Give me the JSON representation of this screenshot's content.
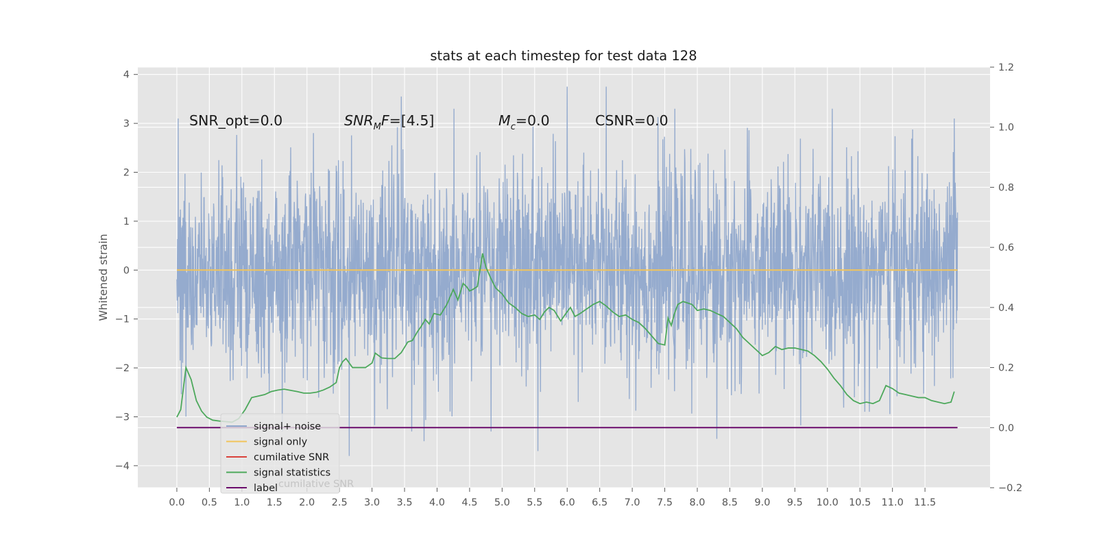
{
  "chart_data": {
    "type": "line",
    "title": "stats at each timestep for test data 128",
    "ylabel": "Whitened strain",
    "xlabel": "",
    "xlim": [
      -0.6,
      12.5
    ],
    "ylim_left": [
      -4.45,
      4.15
    ],
    "ylim_right": [
      -0.2,
      1.2
    ],
    "grid": true,
    "legend_placement": "lower-left",
    "x_ticks": [
      "0.0",
      "0.5",
      "1.0",
      "1.5",
      "2.0",
      "2.5",
      "3.0",
      "3.5",
      "4.0",
      "4.5",
      "5.0",
      "5.5",
      "6.0",
      "6.5",
      "7.0",
      "7.5",
      "8.0",
      "8.5",
      "9.0",
      "9.5",
      "10.0",
      "10.5",
      "11.0",
      "11.5"
    ],
    "y_ticks_left": [
      "−4",
      "−3",
      "−2",
      "−1",
      "0",
      "1",
      "2",
      "3",
      "4"
    ],
    "y_ticks_right": [
      "−0.2",
      "0.0",
      "0.2",
      "0.4",
      "0.6",
      "0.8",
      "1.0",
      "1.2"
    ],
    "annotations": [
      {
        "id": "snr-opt",
        "text": "SNR_opt=0.0"
      },
      {
        "id": "snr-mf",
        "text": "SNR_MF=[4.5]"
      },
      {
        "id": "mc",
        "text": "M_c=0.0"
      },
      {
        "id": "csnr",
        "text": "CSNR=0.0"
      }
    ],
    "legend": [
      {
        "label": "signal+ noise",
        "color": "#8EA6CC"
      },
      {
        "label": "signal only",
        "color": "#F2C45A"
      },
      {
        "label": "cumilative SNR",
        "color": "#D9403A"
      },
      {
        "label": "signal statistics",
        "color": "#4CA85B"
      },
      {
        "label": "label",
        "color": "#6A0A6B"
      }
    ],
    "legend_overlap_text": "cumilative SNR",
    "series": [
      {
        "name": "signal+ noise",
        "axis": "left",
        "color": "#8EA6CC",
        "kind": "noise",
        "x_range": [
          0.0,
          12.0
        ],
        "typical_band": [
          -2.0,
          2.5
        ],
        "extremes": [
          [
            5.55,
            -3.7
          ],
          [
            2.65,
            -3.8
          ],
          [
            3.8,
            -3.5
          ],
          [
            8.3,
            -3.45
          ],
          [
            6.0,
            3.75
          ],
          [
            6.6,
            3.75
          ],
          [
            3.45,
            3.55
          ],
          [
            11.95,
            3.1
          ],
          [
            0.02,
            3.1
          ]
        ]
      },
      {
        "name": "signal only",
        "axis": "left",
        "color": "#F2C45A",
        "x": [
          0.0,
          12.0
        ],
        "y": [
          0.0,
          0.0
        ]
      },
      {
        "name": "signal statistics",
        "axis": "right",
        "color": "#4CA85B",
        "x": [
          0.0,
          0.06,
          0.14,
          0.22,
          0.3,
          0.38,
          0.46,
          0.55,
          0.65,
          0.75,
          0.85,
          0.95,
          1.05,
          1.15,
          1.25,
          1.35,
          1.45,
          1.55,
          1.65,
          1.75,
          1.85,
          1.95,
          2.05,
          2.15,
          2.25,
          2.35,
          2.45,
          2.5,
          2.55,
          2.6,
          2.7,
          2.8,
          2.9,
          3.0,
          3.05,
          3.15,
          3.25,
          3.35,
          3.45,
          3.55,
          3.62,
          3.7,
          3.75,
          3.82,
          3.88,
          3.95,
          4.05,
          4.15,
          4.25,
          4.32,
          4.4,
          4.45,
          4.5,
          4.55,
          4.62,
          4.7,
          4.75,
          4.82,
          4.9,
          5.0,
          5.1,
          5.2,
          5.3,
          5.4,
          5.5,
          5.58,
          5.65,
          5.72,
          5.8,
          5.9,
          5.98,
          6.05,
          6.12,
          6.2,
          6.3,
          6.4,
          6.5,
          6.6,
          6.7,
          6.8,
          6.9,
          7.0,
          7.1,
          7.2,
          7.3,
          7.4,
          7.5,
          7.55,
          7.6,
          7.65,
          7.7,
          7.78,
          7.85,
          7.92,
          8.0,
          8.1,
          8.2,
          8.3,
          8.4,
          8.5,
          8.6,
          8.7,
          8.8,
          8.9,
          9.0,
          9.1,
          9.2,
          9.3,
          9.4,
          9.5,
          9.6,
          9.7,
          9.8,
          9.9,
          10.0,
          10.1,
          10.2,
          10.3,
          10.4,
          10.5,
          10.6,
          10.7,
          10.8,
          10.9,
          11.0,
          11.1,
          11.2,
          11.3,
          11.4,
          11.5,
          11.6,
          11.7,
          11.8,
          11.9,
          11.95
        ],
        "y": [
          0.035,
          0.06,
          0.2,
          0.16,
          0.09,
          0.055,
          0.035,
          0.025,
          0.022,
          0.02,
          0.018,
          0.03,
          0.06,
          0.1,
          0.105,
          0.11,
          0.12,
          0.125,
          0.128,
          0.124,
          0.12,
          0.115,
          0.115,
          0.118,
          0.125,
          0.135,
          0.15,
          0.2,
          0.22,
          0.23,
          0.2,
          0.2,
          0.2,
          0.215,
          0.248,
          0.232,
          0.23,
          0.23,
          0.25,
          0.285,
          0.29,
          0.32,
          0.335,
          0.36,
          0.345,
          0.38,
          0.375,
          0.41,
          0.46,
          0.425,
          0.48,
          0.47,
          0.455,
          0.46,
          0.47,
          0.58,
          0.535,
          0.5,
          0.465,
          0.445,
          0.415,
          0.4,
          0.38,
          0.37,
          0.375,
          0.36,
          0.385,
          0.4,
          0.39,
          0.355,
          0.38,
          0.4,
          0.37,
          0.38,
          0.395,
          0.41,
          0.42,
          0.405,
          0.385,
          0.37,
          0.375,
          0.36,
          0.35,
          0.33,
          0.305,
          0.28,
          0.275,
          0.365,
          0.34,
          0.38,
          0.41,
          0.42,
          0.415,
          0.41,
          0.39,
          0.395,
          0.39,
          0.38,
          0.37,
          0.35,
          0.33,
          0.3,
          0.28,
          0.26,
          0.24,
          0.25,
          0.27,
          0.26,
          0.265,
          0.265,
          0.26,
          0.255,
          0.24,
          0.22,
          0.195,
          0.165,
          0.14,
          0.11,
          0.09,
          0.08,
          0.085,
          0.08,
          0.09,
          0.14,
          0.13,
          0.115,
          0.11,
          0.105,
          0.1,
          0.1,
          0.09,
          0.085,
          0.08,
          0.085,
          0.12
        ]
      },
      {
        "name": "label",
        "axis": "right",
        "color": "#6A0A6B",
        "x": [
          0.0,
          12.0
        ],
        "y": [
          0.0,
          0.0
        ]
      }
    ]
  }
}
